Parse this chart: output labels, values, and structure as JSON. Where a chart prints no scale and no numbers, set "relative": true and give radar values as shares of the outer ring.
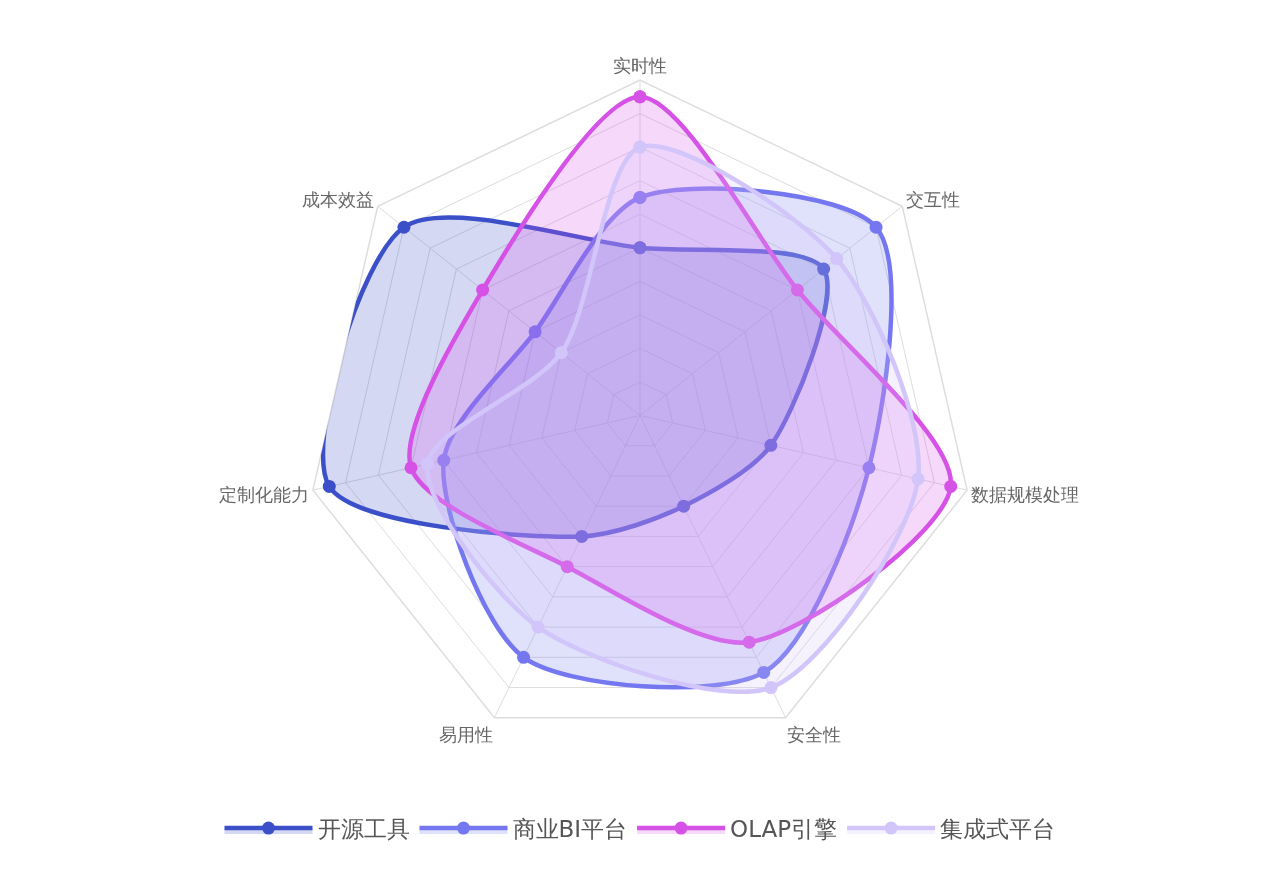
{
  "chart_data": {
    "type": "radar",
    "relative": true,
    "categories": [
      "实时性",
      "交互性",
      "数据规模处理",
      "安全性",
      "易用性",
      "定制化能力",
      "成本效益"
    ],
    "series": [
      {
        "name": "开源工具",
        "color": "#3b4fc9",
        "values": [
          0.5,
          0.7,
          0.4,
          0.3,
          0.4,
          0.95,
          0.9
        ]
      },
      {
        "name": "商业BI平台",
        "color": "#7477ef",
        "values": [
          0.65,
          0.9,
          0.7,
          0.85,
          0.8,
          0.6,
          0.4
        ]
      },
      {
        "name": "OLAP引擎",
        "color": "#d651e6",
        "values": [
          0.95,
          0.6,
          0.95,
          0.75,
          0.5,
          0.7,
          0.6
        ]
      },
      {
        "name": "集成式平台",
        "color": "#d2c5fa",
        "values": [
          0.8,
          0.75,
          0.85,
          0.9,
          0.7,
          0.65,
          0.3
        ]
      }
    ],
    "grid": true,
    "legend": "bottom",
    "marker": "circle",
    "line_style": "solid"
  }
}
